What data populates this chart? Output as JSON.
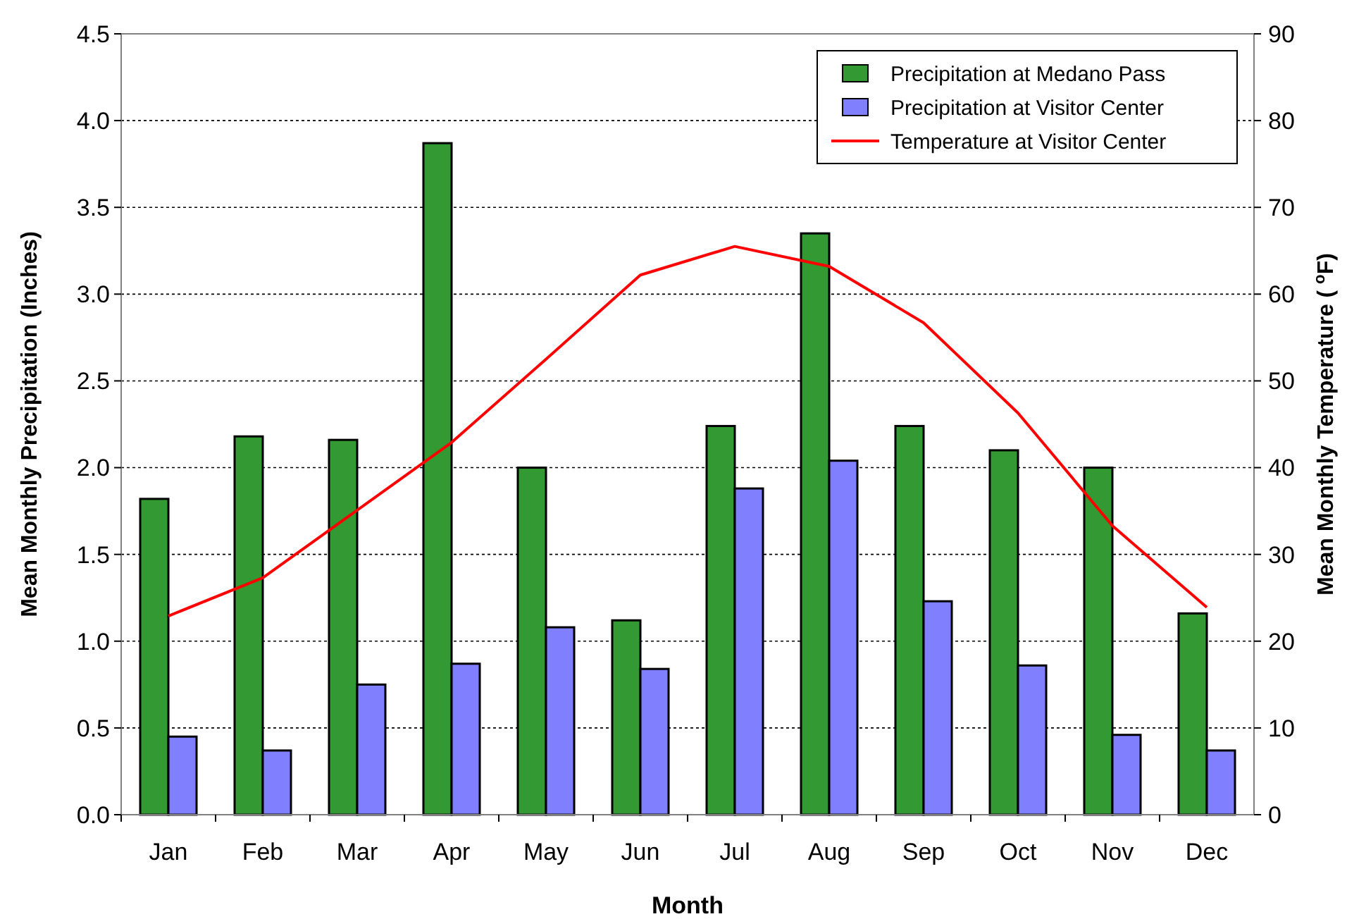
{
  "chart_data": {
    "type": "bar",
    "xlabel": "Month",
    "ylabel": "Mean Monthly Precipitation (Inches)",
    "y2label": "Mean Monthly Temperature ( $^{o}$F)",
    "categories": [
      "Jan",
      "Feb",
      "Mar",
      "Apr",
      "May",
      "Jun",
      "Jul",
      "Aug",
      "Sep",
      "Oct",
      "Nov",
      "Dec"
    ],
    "series": [
      {
        "name": "Precipitation at Medano Pass",
        "color": "#339933",
        "values": [
          1.82,
          2.18,
          2.16,
          3.87,
          2.0,
          1.12,
          2.24,
          3.35,
          2.24,
          2.1,
          2.0,
          1.16
        ]
      },
      {
        "name": "Precipitation at Visitor Center",
        "color": "#8080ff",
        "values": [
          0.45,
          0.37,
          0.75,
          0.87,
          1.08,
          0.84,
          1.88,
          2.04,
          1.23,
          0.86,
          0.46,
          0.37
        ]
      },
      {
        "name": "Temperature at Visitor Center",
        "type": "line",
        "axis": "y2",
        "color": "#ff0000",
        "line_style": "solid",
        "marker": "none",
        "values": [
          22.9,
          27.3,
          35.1,
          42.9,
          52.5,
          62.2,
          65.5,
          63.2,
          56.7,
          46.3,
          33.3,
          23.9
        ]
      }
    ],
    "ylim": [
      0,
      4.5
    ],
    "yticks": [
      {
        "value": 0,
        "label": "0.0"
      },
      {
        "value": 0.5,
        "label": "0.5"
      },
      {
        "value": 1,
        "label": "1.0"
      },
      {
        "value": 1.5,
        "label": "1.5"
      },
      {
        "value": 2,
        "label": "2.0"
      },
      {
        "value": 2.5,
        "label": "2.5"
      },
      {
        "value": 3,
        "label": "3.0"
      },
      {
        "value": 3.5,
        "label": "3.5"
      },
      {
        "value": 4,
        "label": "4.0"
      },
      {
        "value": 4.5,
        "label": "4.5"
      }
    ],
    "y2lim": [
      0,
      90
    ],
    "y2ticks": [
      0,
      10,
      20,
      30,
      40,
      50,
      60,
      70,
      80,
      90
    ],
    "grid": "y",
    "legend": "top right"
  }
}
